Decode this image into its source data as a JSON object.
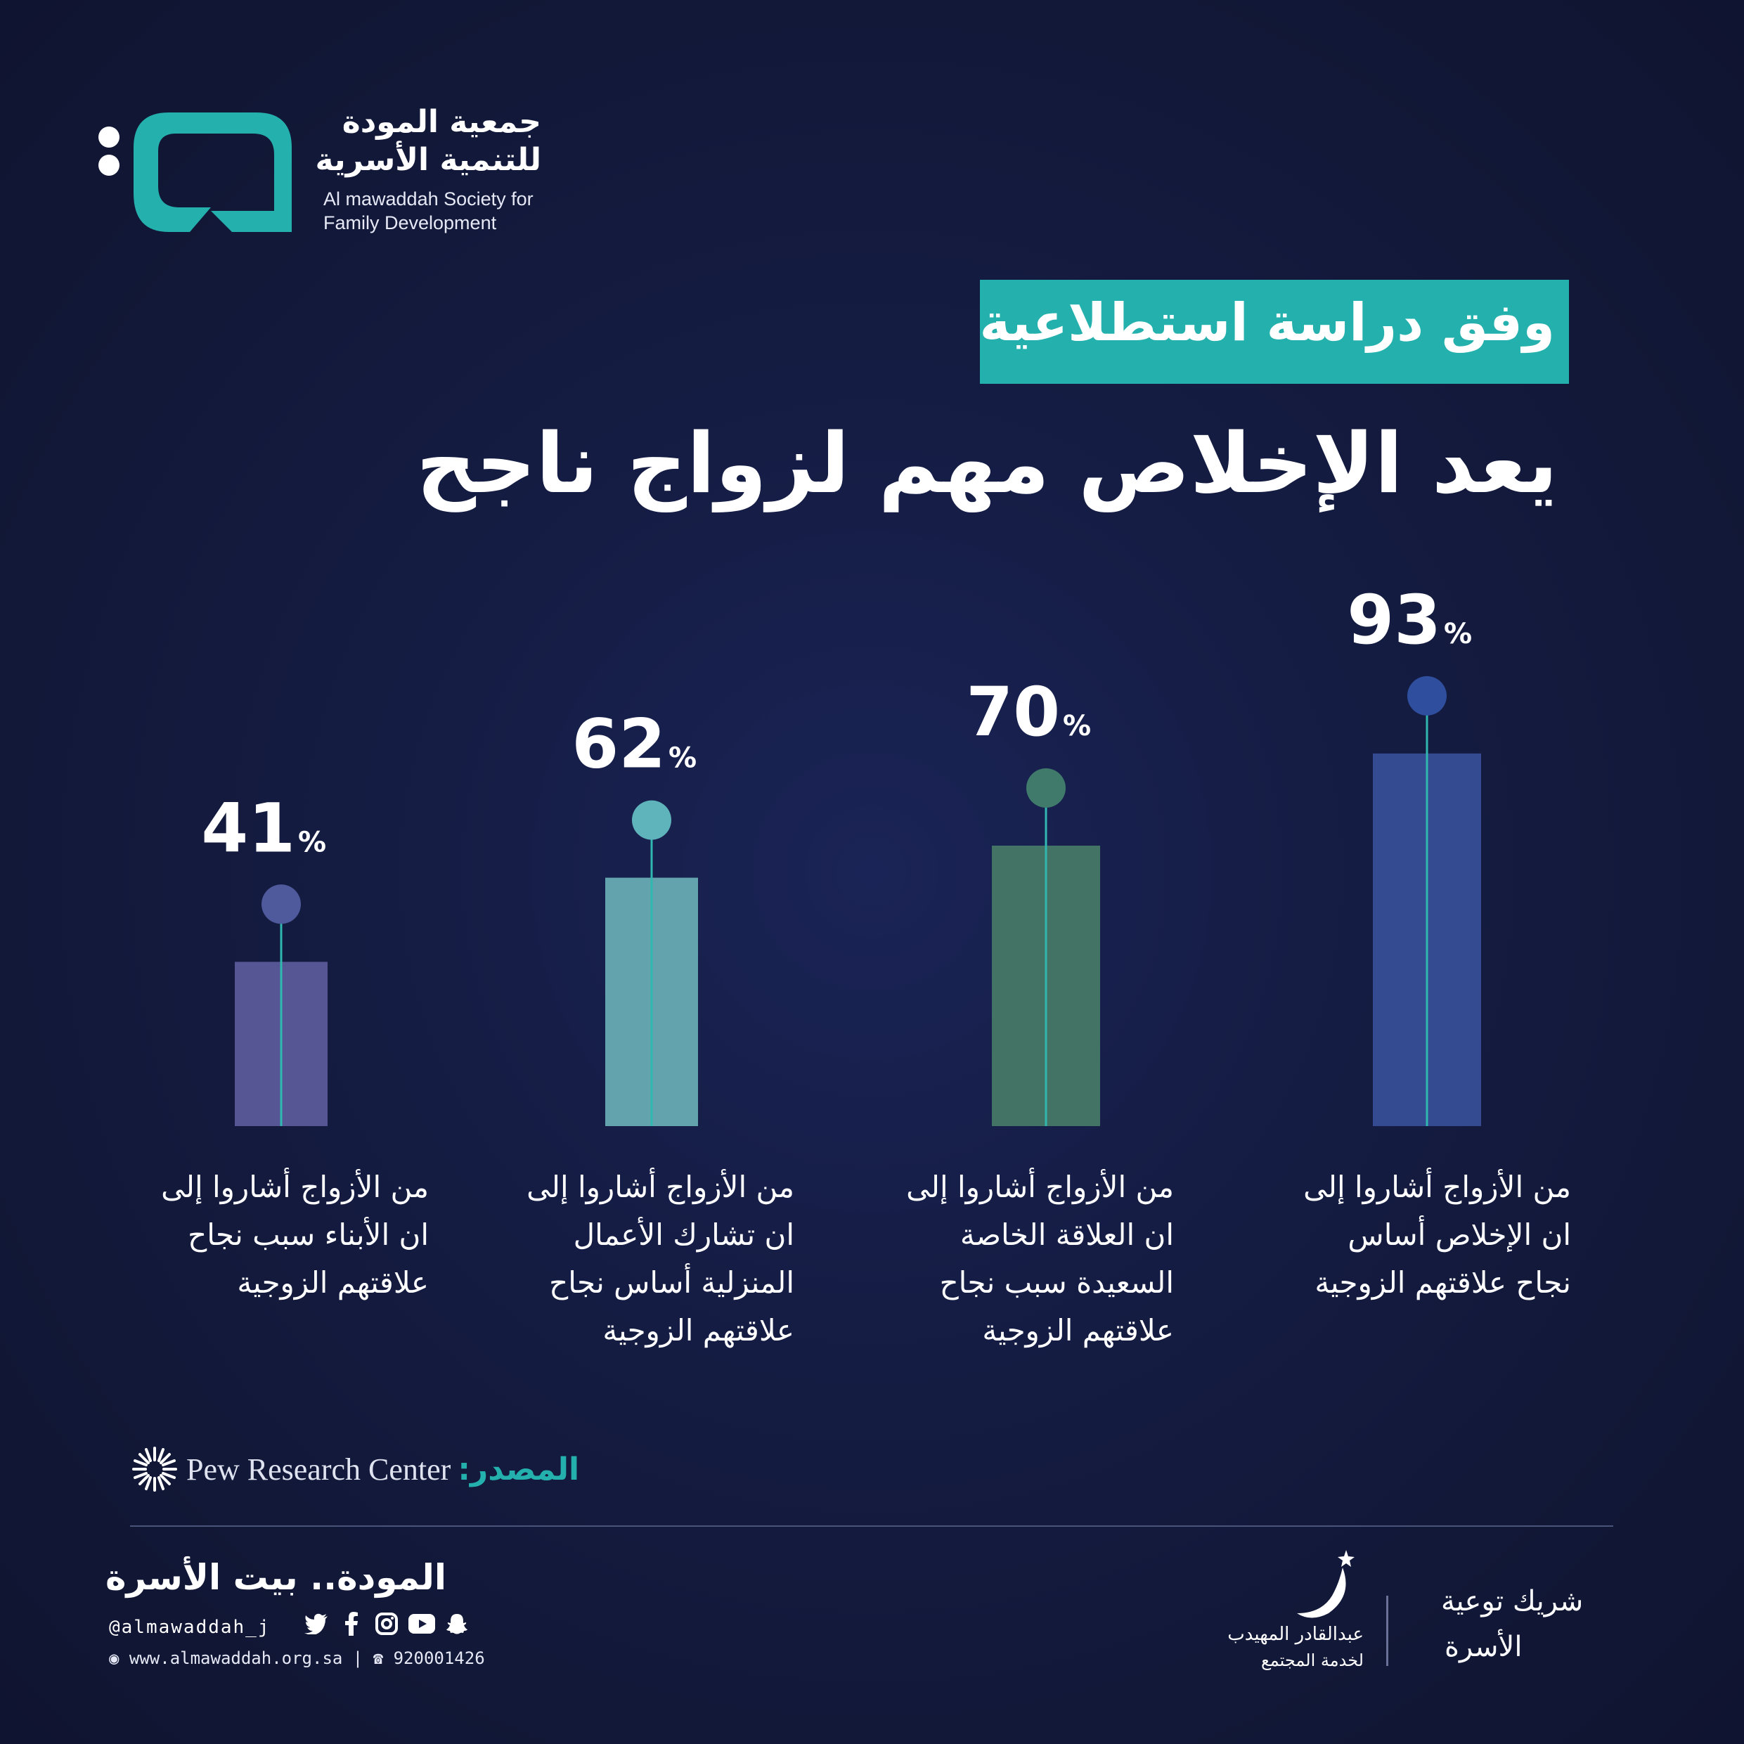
{
  "colors": {
    "accent": "#24b1ad",
    "background": "#141b3f",
    "bar_purple": "#555693",
    "bar_teal": "#62a3ad",
    "bar_green": "#437364",
    "bar_blue": "#344a91"
  },
  "logo": {
    "ar_line1": "جمعية المودة",
    "ar_line2": "للتنمية الأسرية",
    "en_line1": "Al mawaddah Society for",
    "en_line2": "Family Development"
  },
  "badge": "وفق دراسة استطلاعية",
  "title": "يعد الإخلاص مهم لزواج ناجح",
  "chart_data": {
    "type": "bar",
    "unit": "%",
    "ylim": [
      0,
      100
    ],
    "categories": [
      "من الأزواج أشاروا إلى ان الأبناء سبب نجاح علاقتهم الزوجية",
      "من الأزواج أشاروا إلى ان تشارك الأعمال المنزلية أساس نجاح علاقتهم الزوجية",
      "من الأزواج أشاروا إلى ان العلاقة الخاصة السعيدة سبب نجاح علاقتهم الزوجية",
      "من الأزواج أشاروا إلى ان الإخلاص أساس نجاح علاقتهم الزوجية"
    ],
    "values": [
      41,
      62,
      70,
      93
    ],
    "value_labels": [
      "41",
      "62",
      "70",
      "93"
    ],
    "bar_colors": [
      "#555693",
      "#62a3ad",
      "#437364",
      "#344a91"
    ],
    "dot_colors": [
      "#4f5a9c",
      "#5fb3bb",
      "#3f7a6a",
      "#2f4f9e"
    ]
  },
  "descriptions": {
    "d1": [
      "من الأزواج أشاروا إلى",
      "ان الأبناء سبب نجاح",
      "علاقتهم الزوجية"
    ],
    "d2": [
      "من الأزواج أشاروا إلى",
      "ان تشارك الأعمال",
      "المنزلية أساس نجاح",
      "علاقتهم الزوجية"
    ],
    "d3": [
      "من الأزواج أشاروا إلى",
      "ان العلاقة الخاصة",
      "السعيدة سبب نجاح",
      "علاقتهم الزوجية"
    ],
    "d4": [
      "من الأزواج أشاروا إلى",
      "ان الإخلاص أساس",
      "نجاح علاقتهم الزوجية"
    ]
  },
  "source": {
    "label": "المصدر:",
    "name": "Pew Research Center"
  },
  "footer": {
    "slogan": "المودة.. بيت الأسرة",
    "handle": "@almawaddah_j",
    "website": "www.almawaddah.org.sa",
    "phone": "920001426",
    "social_icons": [
      "twitter-icon",
      "facebook-icon",
      "instagram-icon",
      "youtube-icon",
      "snapchat-icon"
    ],
    "partner_name": "عبدالقادر المهيدب",
    "partner_sub": "لخدمة المجتمع",
    "partner_line1": "شريك توعية",
    "partner_line2": "الأسرة"
  }
}
